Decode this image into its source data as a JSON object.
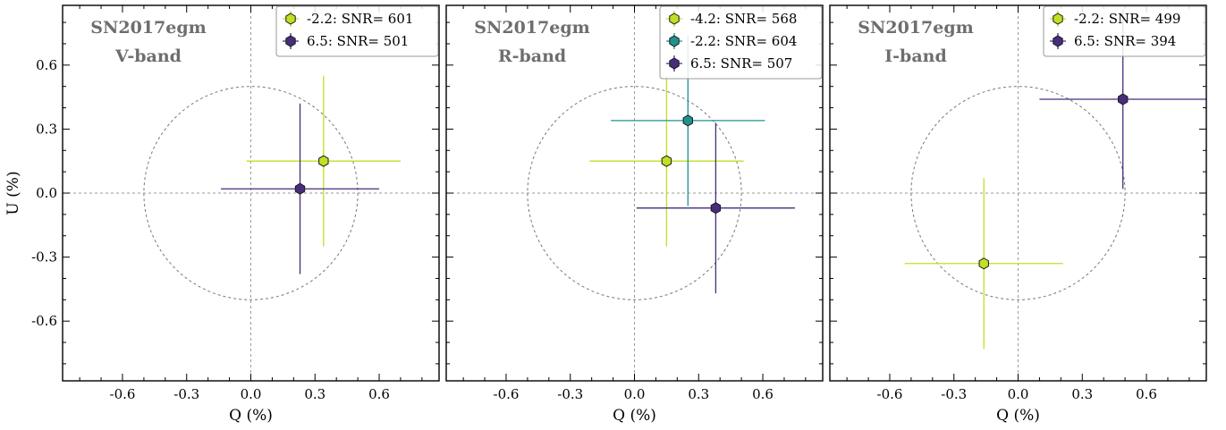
{
  "chart_data": [
    {
      "type": "scatter",
      "object_label": "SN2017egm",
      "band_label": "V-band",
      "xlabel": "Q (%)",
      "ylabel": "U (%)",
      "xlim": [
        -0.88,
        0.88
      ],
      "ylim": [
        -0.88,
        0.88
      ],
      "xticks": [
        "-0.6",
        "-0.3",
        "0.0",
        "0.3",
        "0.6"
      ],
      "yticks": [
        "-0.6",
        "-0.3",
        "0.0",
        "0.3",
        "0.6"
      ],
      "circle_radius": 0.5,
      "legend_position": "top-right",
      "series": [
        {
          "name": "-2.2: SNR= 601",
          "color": "#c2df23",
          "x": 0.34,
          "y": 0.15,
          "xerr": 0.36,
          "yerr": 0.4
        },
        {
          "name": "6.5: SNR= 501",
          "color": "#472d7b",
          "x": 0.23,
          "y": 0.02,
          "xerr": 0.37,
          "yerr": 0.4
        }
      ]
    },
    {
      "type": "scatter",
      "object_label": "SN2017egm",
      "band_label": "R-band",
      "xlabel": "Q (%)",
      "ylabel": "",
      "xlim": [
        -0.88,
        0.88
      ],
      "ylim": [
        -0.88,
        0.88
      ],
      "xticks": [
        "-0.6",
        "-0.3",
        "0.0",
        "0.3",
        "0.6"
      ],
      "yticks": [],
      "circle_radius": 0.5,
      "legend_position": "top-right",
      "series": [
        {
          "name": "-4.2: SNR= 568",
          "color": "#c2df23",
          "x": 0.15,
          "y": 0.15,
          "xerr": 0.36,
          "yerr": 0.4
        },
        {
          "name": "-2.2: SNR= 604",
          "color": "#21918c",
          "x": 0.25,
          "y": 0.34,
          "xerr": 0.36,
          "yerr": 0.4
        },
        {
          "name": "6.5: SNR= 507",
          "color": "#472d7b",
          "x": 0.38,
          "y": -0.07,
          "xerr": 0.37,
          "yerr": 0.4
        }
      ]
    },
    {
      "type": "scatter",
      "object_label": "SN2017egm",
      "band_label": "I-band",
      "xlabel": "Q (%)",
      "ylabel": "",
      "xlim": [
        -0.88,
        0.88
      ],
      "ylim": [
        -0.88,
        0.88
      ],
      "xticks": [
        "-0.6",
        "-0.3",
        "0.0",
        "0.3",
        "0.6"
      ],
      "yticks": [],
      "circle_radius": 0.5,
      "legend_position": "top-right",
      "series": [
        {
          "name": "-2.2: SNR= 499",
          "color": "#c2df23",
          "x": -0.16,
          "y": -0.33,
          "xerr": 0.37,
          "yerr": 0.4
        },
        {
          "name": "6.5: SNR= 394",
          "color": "#472d7b",
          "x": 0.49,
          "y": 0.44,
          "xerr": 0.39,
          "yerr": 0.42
        }
      ]
    }
  ]
}
